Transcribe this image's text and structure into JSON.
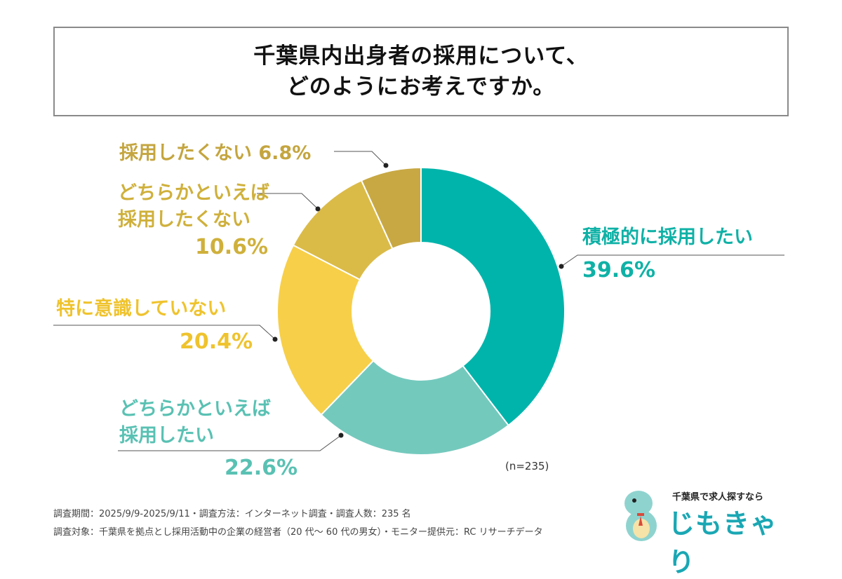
{
  "title": {
    "line1": "千葉県内出身者の採用について、",
    "line2": "どのようにお考えですか。"
  },
  "chart_data": {
    "type": "pie",
    "donut": true,
    "slices": [
      {
        "label": "積極的に採用したい",
        "value": 39.6,
        "display": "39.6%",
        "color": "#00b4ab"
      },
      {
        "label": "どちらかといえば採用したい",
        "value": 22.6,
        "display": "22.6%",
        "color": "#74c9bd"
      },
      {
        "label": "特に意識していない",
        "value": 20.4,
        "display": "20.4%",
        "color": "#f7cf48"
      },
      {
        "label": "どちらかといえば採用したくない",
        "value": 10.6,
        "display": "10.6%",
        "color": "#dbbb48"
      },
      {
        "label": "採用したくない",
        "value": 6.8,
        "display": "6.8%",
        "color": "#c8a843"
      }
    ],
    "sample_size": "(n=235)"
  },
  "labels": {
    "s0": {
      "name": "積極的に採用したい",
      "pct": "39.6%",
      "color": "#0fb1a6"
    },
    "s1": {
      "name1": "どちらかといえば",
      "name2": "採用したい",
      "pct": "22.6%",
      "color": "#59c1b3"
    },
    "s2": {
      "name": "特に意識していない",
      "pct": "20.4%",
      "color": "#efc32d"
    },
    "s3": {
      "name1": "どちらかといえば",
      "name2": "採用したくない",
      "pct": "10.6%",
      "color": "#cfb03b"
    },
    "s4": {
      "name": "採用したくない 6.8%",
      "color": "#c4a53f"
    }
  },
  "footer": {
    "line1": "調査期間：2025/9/9-2025/9/11・調査方法：インターネット調査・調査人数：235 名",
    "line2": "調査対象：千葉県を拠点とし採用活動中の企業の経営者（20 代～ 60 代の男女）・モニター提供元：RC リサーチデータ"
  },
  "brand": {
    "tagline": "千葉県で求人探すなら",
    "name": "じもきゃり"
  }
}
